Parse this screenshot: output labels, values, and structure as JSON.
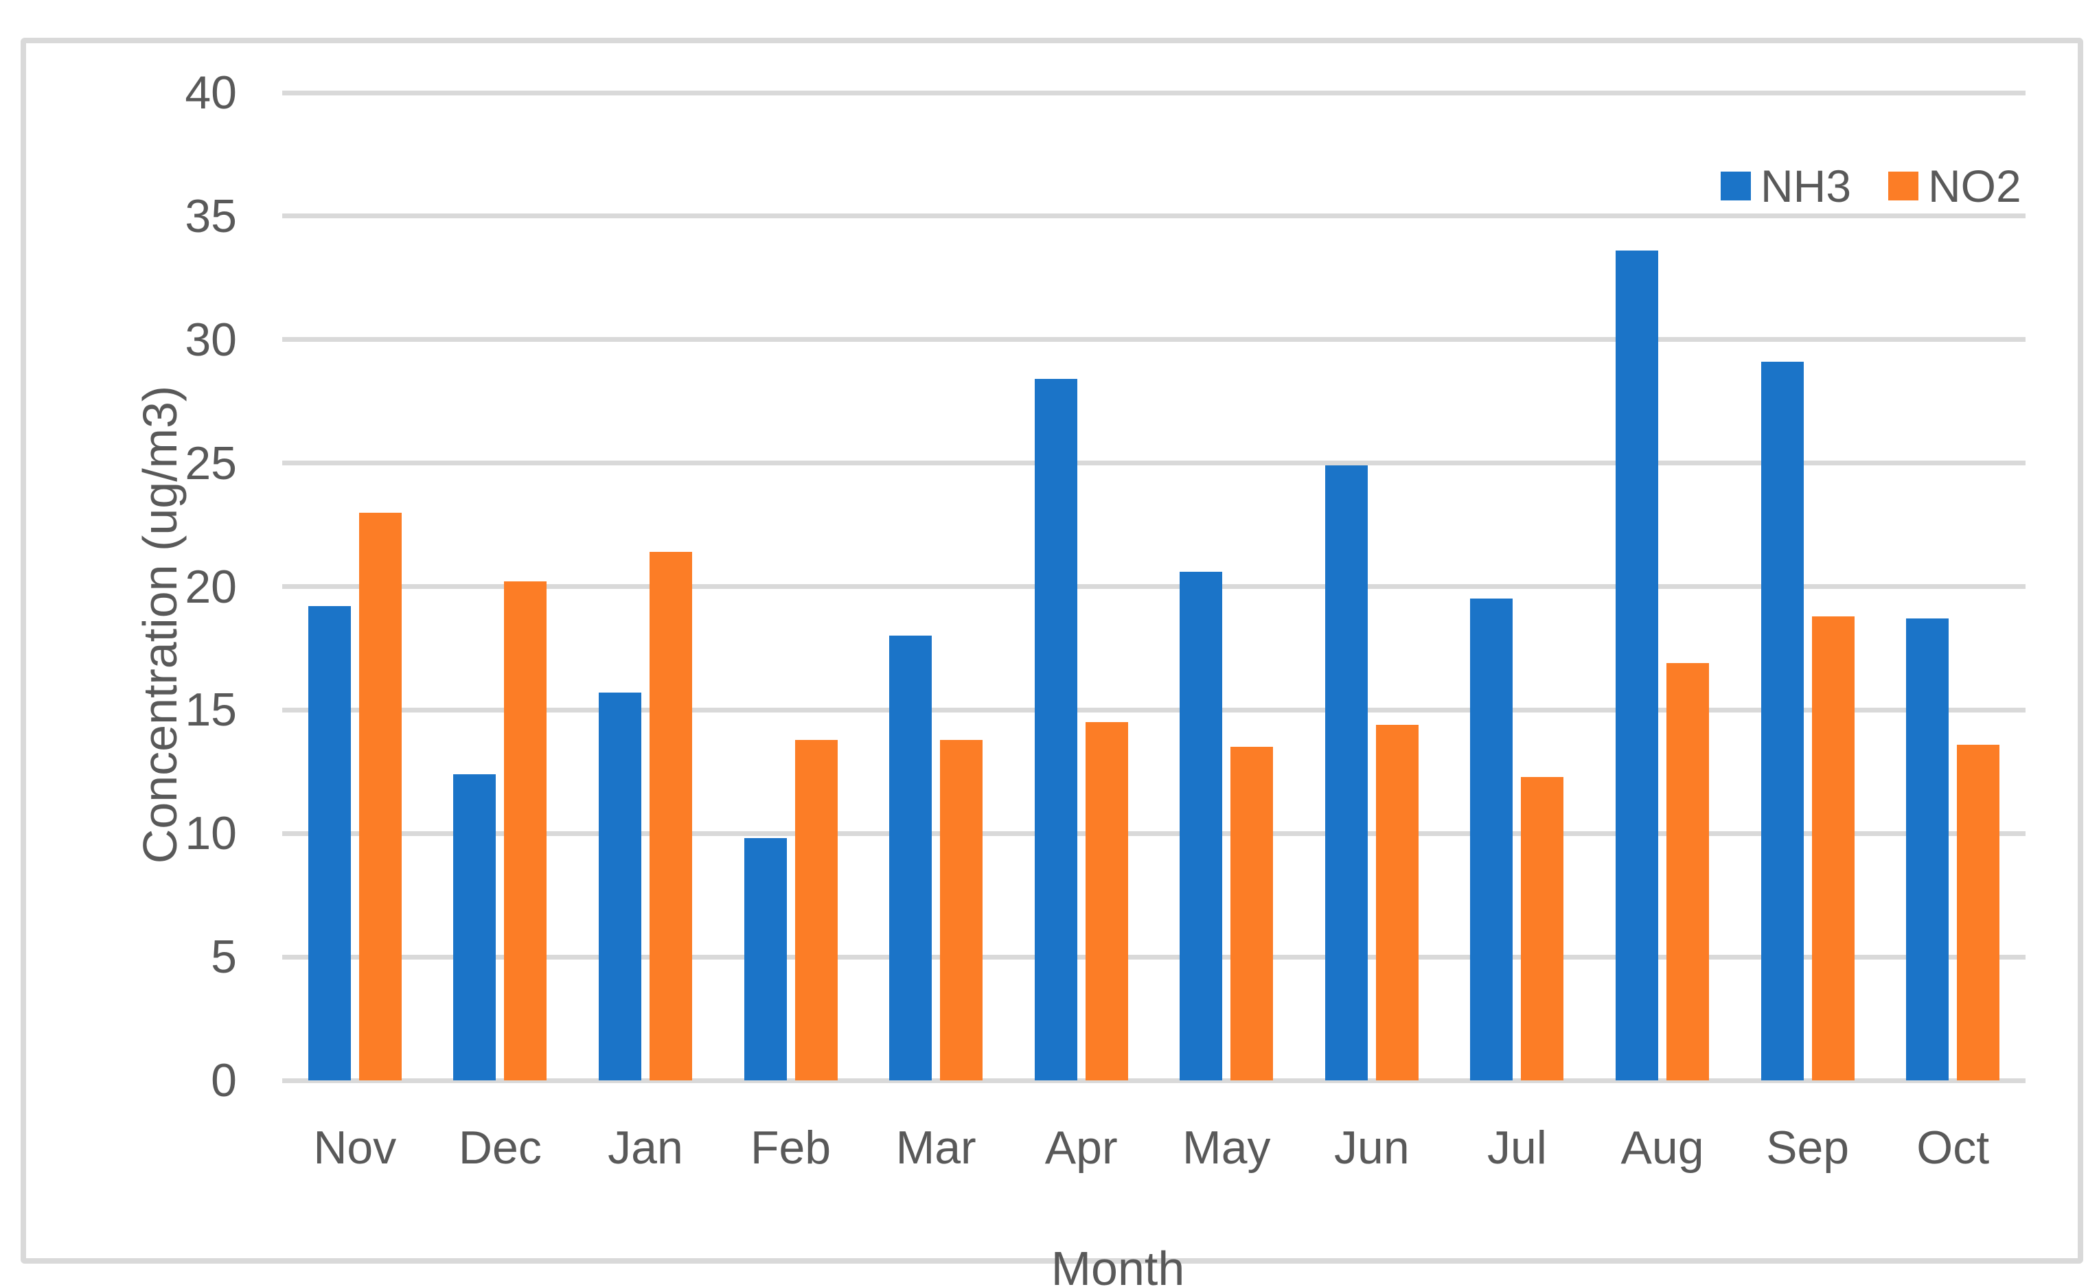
{
  "chart_data": {
    "type": "bar",
    "title": "",
    "categories": [
      "Nov",
      "Dec",
      "Jan",
      "Feb",
      "Mar",
      "Apr",
      "May",
      "Jun",
      "Jul",
      "Aug",
      "Sep",
      "Oct"
    ],
    "series": [
      {
        "name": "NH3",
        "color": "#1B74C8",
        "values": [
          19.2,
          12.4,
          15.7,
          9.8,
          18.0,
          28.4,
          20.6,
          24.9,
          19.5,
          33.6,
          29.1,
          18.7
        ]
      },
      {
        "name": "NO2",
        "color": "#FC7D26",
        "values": [
          23.0,
          20.2,
          21.4,
          13.8,
          13.8,
          14.5,
          13.5,
          14.4,
          12.3,
          16.9,
          18.8,
          13.6
        ]
      }
    ],
    "xlabel": "Month",
    "ylabel": "Concentration (ug/m3)",
    "ylim": [
      0,
      40
    ],
    "yticks": [
      0,
      5,
      10,
      15,
      20,
      25,
      30,
      35,
      40
    ],
    "grid": true,
    "legend_position": "top-right",
    "gridline_color": "#D9D9D9",
    "text_color": "#595959"
  }
}
